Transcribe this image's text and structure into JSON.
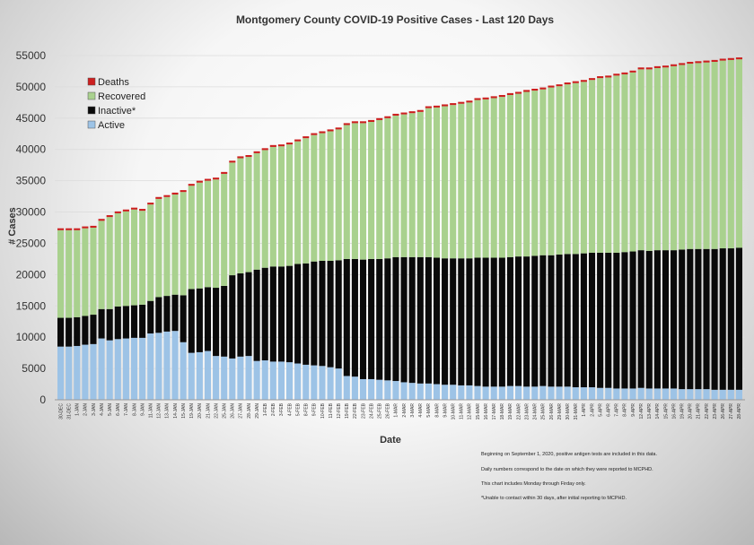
{
  "chart_data": {
    "type": "bar",
    "stacked": true,
    "title": "Montgomery County COVID-19 Positive Cases - Last  120 Days",
    "xlabel": "Date",
    "ylabel": "# Cases",
    "ylim": [
      0,
      55000
    ],
    "yticks": [
      0,
      5000,
      10000,
      15000,
      20000,
      25000,
      30000,
      35000,
      40000,
      45000,
      50000,
      55000
    ],
    "grid": true,
    "legend_position": "top-left",
    "legend_entries": [
      "Deaths",
      "Recovered",
      "Inactive*",
      "Active"
    ],
    "colors": {
      "Deaths": "#cc1f1f",
      "Recovered": "#a9d18e",
      "Inactive*": "#0a0a0a",
      "Active": "#9dc3e6"
    },
    "categories": [
      "30-DEC",
      "31-DEC",
      "1-JAN",
      "2-JAN",
      "3-JAN",
      "4-JAN",
      "5-JAN",
      "6-JAN",
      "7-JAN",
      "8-JAN",
      "9-JAN",
      "11-JAN",
      "12-JAN",
      "13-JAN",
      "14-JAN",
      "15-JAN",
      "19-JAN",
      "20-JAN",
      "21-JAN",
      "22-JAN",
      "25-JAN",
      "26-JAN",
      "27-JAN",
      "28-JAN",
      "29-JAN",
      "1-FEB",
      "2-FEB",
      "3-FEB",
      "4-FEB",
      "5-FEB",
      "8-FEB",
      "9-FEB",
      "10-FEB",
      "11-FEB",
      "12-FEB",
      "19-FEB",
      "22-FEB",
      "23-FEB",
      "24-FEB",
      "25-FEB",
      "26-FEB",
      "1-MAR",
      "2-MAR",
      "3-MAR",
      "4-MAR",
      "5-MAR",
      "8-MAR",
      "9-MAR",
      "10-MAR",
      "11-MAR",
      "12-MAR",
      "15-MAR",
      "16-MAR",
      "17-MAR",
      "18-MAR",
      "19-MAR",
      "22-MAR",
      "23-MAR",
      "24-MAR",
      "25-MAR",
      "26-MAR",
      "29-MAR",
      "30-MAR",
      "31-MAR",
      "1-APR",
      "2-APR",
      "5-APR",
      "6-APR",
      "7-APR",
      "8-APR",
      "9-APR",
      "12-APR",
      "13-APR",
      "14-APR",
      "15-APR",
      "16-APR",
      "19-APR",
      "20-APR",
      "21-APR",
      "22-APR",
      "23-APR",
      "26-APR",
      "27-APR",
      "28-APR"
    ],
    "series": [
      {
        "name": "Active",
        "values": [
          8500,
          8500,
          8600,
          8800,
          8900,
          9800,
          9500,
          9700,
          9800,
          9900,
          9900,
          10600,
          10700,
          10900,
          11000,
          9200,
          7500,
          7600,
          7800,
          7000,
          6900,
          6600,
          6900,
          7000,
          6200,
          6300,
          6100,
          6100,
          6000,
          5800,
          5600,
          5500,
          5400,
          5200,
          5000,
          3800,
          3700,
          3300,
          3300,
          3200,
          3100,
          3000,
          2800,
          2700,
          2600,
          2600,
          2500,
          2400,
          2400,
          2300,
          2300,
          2200,
          2100,
          2100,
          2100,
          2200,
          2200,
          2100,
          2100,
          2200,
          2100,
          2100,
          2100,
          2000,
          2000,
          2000,
          1900,
          1900,
          1800,
          1800,
          1800,
          1900,
          1800,
          1800,
          1800,
          1800,
          1700,
          1700,
          1700,
          1700,
          1600,
          1600,
          1600,
          1600
        ]
      },
      {
        "name": "Inactive*",
        "values": [
          4600,
          4600,
          4600,
          4600,
          4700,
          4700,
          5000,
          5200,
          5200,
          5200,
          5300,
          5200,
          5700,
          5700,
          5800,
          7500,
          10200,
          10200,
          10200,
          10900,
          11300,
          13300,
          13300,
          13400,
          14600,
          14800,
          15200,
          15200,
          15400,
          15900,
          16200,
          16600,
          16800,
          17000,
          17300,
          18700,
          18800,
          19100,
          19200,
          19300,
          19500,
          19800,
          20000,
          20100,
          20200,
          20200,
          20200,
          20200,
          20200,
          20300,
          20300,
          20500,
          20600,
          20600,
          20600,
          20600,
          20700,
          20800,
          20900,
          20900,
          21000,
          21100,
          21200,
          21300,
          21400,
          21500,
          21600,
          21600,
          21700,
          21800,
          21900,
          22000,
          22000,
          22100,
          22100,
          22100,
          22300,
          22400,
          22400,
          22400,
          22500,
          22600,
          22600,
          22700
        ]
      },
      {
        "name": "Recovered",
        "values": [
          14000,
          14000,
          13900,
          14000,
          13900,
          14100,
          14700,
          14900,
          15100,
          15300,
          15000,
          15400,
          15700,
          15800,
          16000,
          16500,
          16500,
          16900,
          17000,
          17300,
          17900,
          18000,
          18400,
          18400,
          18600,
          18800,
          19100,
          19200,
          19400,
          19600,
          20000,
          20200,
          20400,
          20700,
          20900,
          21400,
          21700,
          21800,
          21900,
          22200,
          22400,
          22600,
          22800,
          23000,
          23200,
          23800,
          24000,
          24300,
          24500,
          24700,
          24900,
          25200,
          25300,
          25500,
          25700,
          25900,
          26000,
          26300,
          26400,
          26500,
          26800,
          26900,
          27100,
          27300,
          27400,
          27600,
          27900,
          28000,
          28300,
          28400,
          28600,
          28900,
          29000,
          29100,
          29200,
          29400,
          29500,
          29600,
          29700,
          29800,
          29900,
          30000,
          30100,
          30100
        ]
      },
      {
        "name": "Deaths",
        "values": [
          300,
          300,
          300,
          300,
          300,
          300,
          300,
          300,
          300,
          300,
          300,
          300,
          300,
          300,
          300,
          300,
          300,
          300,
          300,
          300,
          300,
          300,
          300,
          300,
          300,
          300,
          300,
          300,
          300,
          300,
          300,
          300,
          300,
          300,
          300,
          300,
          300,
          300,
          300,
          300,
          300,
          300,
          300,
          300,
          300,
          300,
          300,
          300,
          300,
          300,
          300,
          300,
          300,
          300,
          300,
          300,
          300,
          300,
          300,
          300,
          300,
          300,
          300,
          300,
          300,
          300,
          300,
          300,
          300,
          300,
          300,
          300,
          300,
          300,
          300,
          300,
          300,
          300,
          300,
          300,
          300,
          300,
          300,
          300
        ]
      }
    ]
  },
  "notes": [
    "Beginning on September 1, 2020, positive antigen tests are included in this data.",
    "Daily numbers correspond to the date on which they were reported to MCPHD.",
    "This chart includes Monday through Firday only.",
    "*Unable to contact within 30 days, after initial reporting to MCPHD."
  ]
}
